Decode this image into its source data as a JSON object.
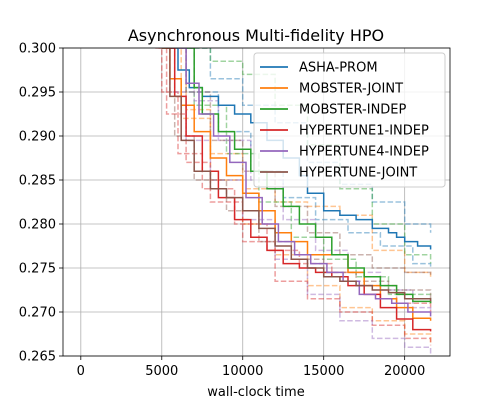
{
  "chart_data": {
    "type": "line",
    "title": "Asynchronous Multi-fidelity HPO",
    "xlabel": "wall-clock time",
    "ylabel": "",
    "xlim": [
      -1100,
      22800
    ],
    "ylim": [
      0.265,
      0.3
    ],
    "xticks": [
      0,
      5000,
      10000,
      15000,
      20000
    ],
    "xtick_labels": [
      "0",
      "5000",
      "10000",
      "15000",
      "20000"
    ],
    "yticks": [
      0.265,
      0.27,
      0.275,
      0.28,
      0.285,
      0.29,
      0.295,
      0.3
    ],
    "ytick_labels": [
      "0.265",
      "0.270",
      "0.275",
      "0.280",
      "0.285",
      "0.290",
      "0.295",
      "0.300"
    ],
    "grid": true,
    "legend_position": "top-right",
    "series": [
      {
        "name": "ASHA-PROM",
        "color": "#1f77b4",
        "points": [
          [
            5500,
            0.3
          ],
          [
            6000,
            0.2975
          ],
          [
            6700,
            0.2955
          ],
          [
            7500,
            0.2945
          ],
          [
            8500,
            0.2935
          ],
          [
            9500,
            0.2925
          ],
          [
            10500,
            0.2915
          ],
          [
            11500,
            0.2895
          ],
          [
            12500,
            0.2875
          ],
          [
            13500,
            0.2855
          ],
          [
            14000,
            0.2835
          ],
          [
            15000,
            0.2815
          ],
          [
            16000,
            0.281
          ],
          [
            17000,
            0.2805
          ],
          [
            18000,
            0.2795
          ],
          [
            19000,
            0.279
          ],
          [
            19500,
            0.2785
          ],
          [
            20000,
            0.278
          ],
          [
            20800,
            0.2775
          ],
          [
            21600,
            0.2771
          ]
        ]
      },
      {
        "name": "MOBSTER-JOINT",
        "color": "#ff7f0e",
        "points": [
          [
            5000,
            0.3
          ],
          [
            5500,
            0.2965
          ],
          [
            6200,
            0.2935
          ],
          [
            7000,
            0.2905
          ],
          [
            8000,
            0.2875
          ],
          [
            9000,
            0.2855
          ],
          [
            10000,
            0.2835
          ],
          [
            11000,
            0.2815
          ],
          [
            12000,
            0.279
          ],
          [
            13000,
            0.278
          ],
          [
            14000,
            0.2765
          ],
          [
            15500,
            0.2765
          ],
          [
            16500,
            0.2745
          ],
          [
            17500,
            0.273
          ],
          [
            18500,
            0.2715
          ],
          [
            19500,
            0.2705
          ],
          [
            20500,
            0.2693
          ],
          [
            21600,
            0.269
          ]
        ]
      },
      {
        "name": "MOBSTER-INDEP",
        "color": "#2ca02c",
        "points": [
          [
            6500,
            0.3
          ],
          [
            7000,
            0.2955
          ],
          [
            7500,
            0.2925
          ],
          [
            8500,
            0.2905
          ],
          [
            9500,
            0.2885
          ],
          [
            10500,
            0.286
          ],
          [
            11500,
            0.284
          ],
          [
            12500,
            0.282
          ],
          [
            13500,
            0.28
          ],
          [
            14500,
            0.2785
          ],
          [
            15500,
            0.2765
          ],
          [
            16500,
            0.275
          ],
          [
            17500,
            0.274
          ],
          [
            18500,
            0.273
          ],
          [
            19500,
            0.272
          ],
          [
            20500,
            0.2712
          ],
          [
            21600,
            0.271
          ]
        ]
      },
      {
        "name": "HYPERTUNE1-INDEP",
        "color": "#d62728",
        "points": [
          [
            5300,
            0.3
          ],
          [
            5800,
            0.2945
          ],
          [
            6500,
            0.29
          ],
          [
            7500,
            0.286
          ],
          [
            8500,
            0.283
          ],
          [
            9500,
            0.2805
          ],
          [
            10500,
            0.2785
          ],
          [
            11500,
            0.277
          ],
          [
            12500,
            0.2755
          ],
          [
            13500,
            0.275
          ],
          [
            14500,
            0.2745
          ],
          [
            15500,
            0.274
          ],
          [
            16500,
            0.273
          ],
          [
            17500,
            0.272
          ],
          [
            18500,
            0.2705
          ],
          [
            19500,
            0.2692
          ],
          [
            20500,
            0.268
          ],
          [
            21600,
            0.2678
          ]
        ]
      },
      {
        "name": "HYPERTUNE4-INDEP",
        "color": "#9467bd",
        "points": [
          [
            6000,
            0.3
          ],
          [
            6500,
            0.296
          ],
          [
            7300,
            0.2925
          ],
          [
            8200,
            0.29
          ],
          [
            9200,
            0.287
          ],
          [
            10200,
            0.283
          ],
          [
            11200,
            0.28
          ],
          [
            12200,
            0.278
          ],
          [
            13200,
            0.2765
          ],
          [
            14200,
            0.2755
          ],
          [
            15200,
            0.2745
          ],
          [
            16200,
            0.2735
          ],
          [
            17200,
            0.272
          ],
          [
            18200,
            0.2715
          ],
          [
            19200,
            0.271
          ],
          [
            20200,
            0.27
          ],
          [
            21600,
            0.2695
          ]
        ]
      },
      {
        "name": "HYPERTUNE-JOINT",
        "color": "#8c564b",
        "points": [
          [
            5000,
            0.3
          ],
          [
            5500,
            0.2945
          ],
          [
            6200,
            0.2895
          ],
          [
            7000,
            0.286
          ],
          [
            8000,
            0.284
          ],
          [
            9000,
            0.283
          ],
          [
            10000,
            0.2815
          ],
          [
            11000,
            0.2795
          ],
          [
            12000,
            0.2775
          ],
          [
            13000,
            0.276
          ],
          [
            14000,
            0.275
          ],
          [
            15000,
            0.274
          ],
          [
            16000,
            0.2735
          ],
          [
            17000,
            0.273
          ],
          [
            18000,
            0.2725
          ],
          [
            19000,
            0.2722
          ],
          [
            20000,
            0.2715
          ],
          [
            21600,
            0.2712
          ]
        ]
      }
    ],
    "background_series": [
      {
        "color": "#1f77b4",
        "points": [
          [
            6500,
            0.3
          ],
          [
            8000,
            0.2965
          ],
          [
            10000,
            0.2935
          ],
          [
            12000,
            0.2915
          ],
          [
            14000,
            0.287
          ],
          [
            16000,
            0.2845
          ],
          [
            18000,
            0.2825
          ],
          [
            20000,
            0.28
          ],
          [
            21600,
            0.279
          ]
        ]
      },
      {
        "color": "#1f77b4",
        "points": [
          [
            5000,
            0.3
          ],
          [
            6500,
            0.295
          ],
          [
            8500,
            0.2905
          ],
          [
            10500,
            0.286
          ],
          [
            12500,
            0.283
          ],
          [
            14500,
            0.2805
          ],
          [
            16500,
            0.279
          ],
          [
            18500,
            0.2775
          ],
          [
            20500,
            0.2755
          ],
          [
            21600,
            0.275
          ]
        ]
      },
      {
        "color": "#ff7f0e",
        "points": [
          [
            5200,
            0.3
          ],
          [
            6500,
            0.293
          ],
          [
            8000,
            0.288
          ],
          [
            10000,
            0.284
          ],
          [
            12000,
            0.2825
          ],
          [
            14000,
            0.282
          ],
          [
            16000,
            0.281
          ],
          [
            18000,
            0.277
          ],
          [
            20000,
            0.2745
          ],
          [
            21600,
            0.274
          ]
        ]
      },
      {
        "color": "#ff7f0e",
        "points": [
          [
            5300,
            0.3
          ],
          [
            6200,
            0.292
          ],
          [
            8000,
            0.285
          ],
          [
            10000,
            0.28
          ],
          [
            12000,
            0.2765
          ],
          [
            14000,
            0.273
          ],
          [
            16000,
            0.2705
          ],
          [
            18000,
            0.269
          ],
          [
            20000,
            0.2675
          ],
          [
            21600,
            0.2663
          ]
        ]
      },
      {
        "color": "#2ca02c",
        "points": [
          [
            7000,
            0.3
          ],
          [
            8000,
            0.2985
          ],
          [
            10000,
            0.297
          ],
          [
            12000,
            0.2935
          ],
          [
            14000,
            0.289
          ],
          [
            16000,
            0.284
          ],
          [
            18000,
            0.28
          ],
          [
            20000,
            0.2765
          ],
          [
            21600,
            0.2755
          ]
        ]
      },
      {
        "color": "#2ca02c",
        "points": [
          [
            5800,
            0.3
          ],
          [
            7000,
            0.2935
          ],
          [
            9000,
            0.288
          ],
          [
            11000,
            0.2825
          ],
          [
            13000,
            0.2785
          ],
          [
            15000,
            0.276
          ],
          [
            17000,
            0.274
          ],
          [
            19000,
            0.272
          ],
          [
            21600,
            0.2707
          ]
        ]
      },
      {
        "color": "#d62728",
        "points": [
          [
            4800,
            0.3
          ],
          [
            5300,
            0.2925
          ],
          [
            6500,
            0.287
          ],
          [
            8000,
            0.2825
          ],
          [
            10000,
            0.278
          ],
          [
            12000,
            0.2735
          ],
          [
            14000,
            0.2715
          ],
          [
            16000,
            0.27
          ],
          [
            18000,
            0.2685
          ],
          [
            20000,
            0.267
          ],
          [
            21600,
            0.2662
          ]
        ]
      },
      {
        "color": "#d62728",
        "points": [
          [
            4600,
            0.3
          ],
          [
            5000,
            0.295
          ],
          [
            6000,
            0.288
          ],
          [
            7500,
            0.284
          ],
          [
            9500,
            0.28
          ],
          [
            11500,
            0.277
          ],
          [
            13500,
            0.2755
          ],
          [
            15500,
            0.2745
          ],
          [
            17500,
            0.273
          ],
          [
            19500,
            0.271
          ],
          [
            21600,
            0.27
          ]
        ]
      },
      {
        "color": "#9467bd",
        "points": [
          [
            5000,
            0.3
          ],
          [
            5500,
            0.295
          ],
          [
            6500,
            0.2895
          ],
          [
            8000,
            0.285
          ],
          [
            10000,
            0.2805
          ],
          [
            12000,
            0.276
          ],
          [
            14000,
            0.272
          ],
          [
            16000,
            0.269
          ],
          [
            18000,
            0.267
          ],
          [
            20000,
            0.266
          ],
          [
            21600,
            0.2652
          ]
        ]
      },
      {
        "color": "#9467bd",
        "points": [
          [
            6200,
            0.3
          ],
          [
            7000,
            0.294
          ],
          [
            8500,
            0.2895
          ],
          [
            10500,
            0.285
          ],
          [
            12500,
            0.2805
          ],
          [
            14500,
            0.277
          ],
          [
            16500,
            0.2745
          ],
          [
            18500,
            0.2725
          ],
          [
            20500,
            0.2705
          ],
          [
            21600,
            0.2698
          ]
        ]
      },
      {
        "color": "#8c564b",
        "points": [
          [
            5500,
            0.3
          ],
          [
            6500,
            0.295
          ],
          [
            8000,
            0.2895
          ],
          [
            10000,
            0.286
          ],
          [
            12000,
            0.282
          ],
          [
            14000,
            0.279
          ],
          [
            16000,
            0.2765
          ],
          [
            18000,
            0.275
          ],
          [
            20000,
            0.2745
          ],
          [
            21600,
            0.2742
          ]
        ]
      },
      {
        "color": "#8c564b",
        "points": [
          [
            5000,
            0.3
          ],
          [
            5800,
            0.29
          ],
          [
            7000,
            0.285
          ],
          [
            9000,
            0.2815
          ],
          [
            11000,
            0.278
          ],
          [
            13000,
            0.276
          ],
          [
            15000,
            0.2745
          ],
          [
            17000,
            0.2735
          ],
          [
            19000,
            0.2725
          ],
          [
            21600,
            0.2712
          ]
        ]
      }
    ]
  }
}
